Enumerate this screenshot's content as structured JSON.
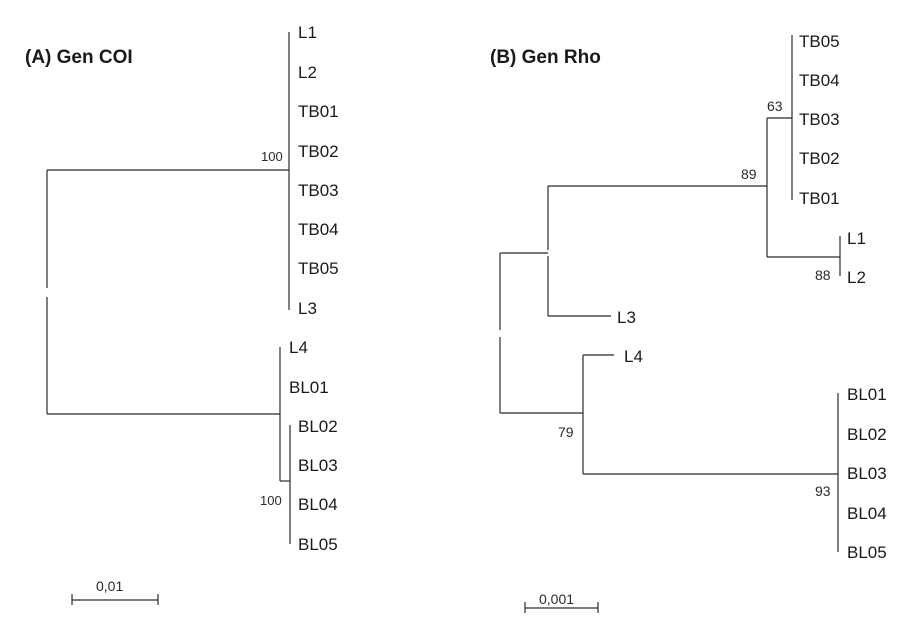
{
  "panel_a": {
    "title": "(A) Gen COI",
    "leaves": [
      "L1",
      "L2",
      "TB01",
      "TB02",
      "TB03",
      "TB04",
      "TB05",
      "L3",
      "L4",
      "BL01",
      "BL02",
      "BL03",
      "BL04",
      "BL05"
    ],
    "bootstrap": [
      "100",
      "100"
    ],
    "scale_label": "0,01"
  },
  "panel_b": {
    "title": "(B) Gen Rho",
    "leaves": [
      "TB05",
      "TB04",
      "TB03",
      "TB02",
      "TB01",
      "L1",
      "L2",
      "L3",
      "L4",
      "BL01",
      "BL02",
      "BL03",
      "BL04",
      "BL05"
    ],
    "bootstrap": [
      "63",
      "89",
      "88",
      "79",
      "93"
    ],
    "scale_label": "0,001"
  }
}
